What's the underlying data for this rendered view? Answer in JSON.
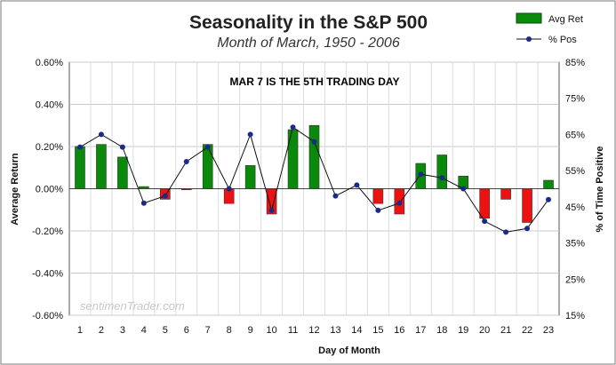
{
  "chart_data": {
    "type": "bar",
    "title": "Seasonality in the S&P 500",
    "subtitle": "Month of March, 1950 - 2006",
    "xlabel": "Day of Month",
    "ylabel": "Average Return",
    "y2label": "% of Time Positive",
    "annotation": "MAR 7 IS THE 5TH TRADING DAY",
    "watermark": "sentimenTrader.com",
    "categories": [
      "1",
      "2",
      "3",
      "4",
      "5",
      "6",
      "7",
      "8",
      "9",
      "10",
      "11",
      "12",
      "13",
      "14",
      "15",
      "16",
      "17",
      "18",
      "19",
      "20",
      "21",
      "22",
      "23"
    ],
    "y_ticks": [
      "0.60%",
      "0.40%",
      "0.20%",
      "0.00%",
      "-0.20%",
      "-0.40%",
      "-0.60%"
    ],
    "y2_ticks": [
      "85%",
      "75%",
      "65%",
      "55%",
      "45%",
      "35%",
      "25%",
      "15%"
    ],
    "ylim": [
      -0.6,
      0.6
    ],
    "y2lim": [
      15,
      85
    ],
    "grid": true,
    "legend_position": "top-right",
    "positive_color": "#0a8a0a",
    "negative_color": "#ee1111",
    "line_color": "#111111",
    "marker_color": "#1a2a8a",
    "series": [
      {
        "name": "Avg Ret",
        "kind": "bar",
        "values": [
          0.2,
          0.21,
          0.15,
          0.01,
          -0.05,
          -0.005,
          0.21,
          -0.07,
          0.11,
          -0.12,
          0.28,
          0.3,
          0.0,
          0.0,
          -0.07,
          -0.12,
          0.12,
          0.16,
          0.06,
          -0.14,
          -0.05,
          -0.16,
          0.04
        ]
      },
      {
        "name": "% Pos",
        "kind": "line",
        "values": [
          61.5,
          65,
          61.5,
          46,
          48,
          57.5,
          61.5,
          50,
          65,
          44,
          67,
          63,
          48,
          51,
          44,
          46,
          54,
          53,
          50,
          41,
          38,
          39,
          47
        ]
      }
    ]
  }
}
